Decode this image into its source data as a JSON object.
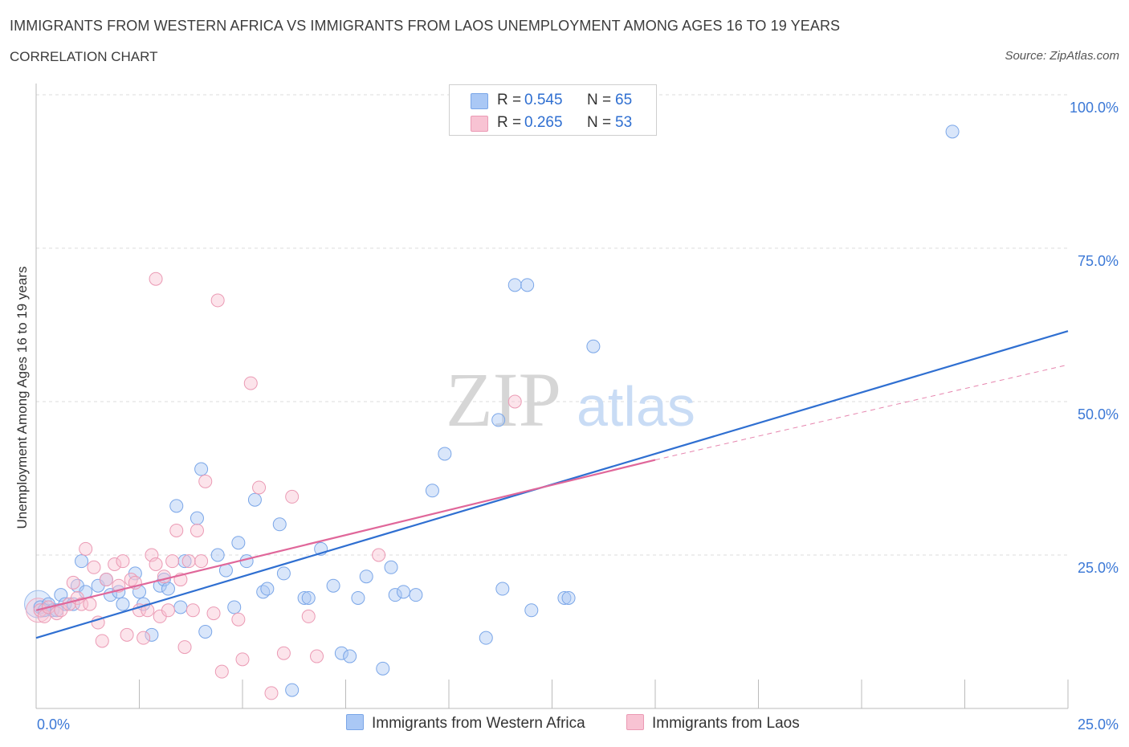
{
  "title": "IMMIGRANTS FROM WESTERN AFRICA VS IMMIGRANTS FROM LAOS UNEMPLOYMENT AMONG AGES 16 TO 19 YEARS",
  "subtitle": "CORRELATION CHART",
  "source": "Source: ZipAtlas.com",
  "watermark": {
    "zip": "ZIP",
    "atlas": "atlas"
  },
  "legend": {
    "r_label": "R =",
    "n_label": "N =",
    "rows": [
      {
        "r": "0.545",
        "n": "65",
        "color": "#aac8f5",
        "border": "#7aa6e8"
      },
      {
        "r": "0.265",
        "n": "53",
        "color": "#f8c3d3",
        "border": "#eb9ab4"
      }
    ]
  },
  "bottom_legend": [
    {
      "label": "Immigrants from Western Africa",
      "color": "#aac8f5",
      "border": "#7aa6e8"
    },
    {
      "label": "Immigrants from Laos",
      "color": "#f8c3d3",
      "border": "#eb9ab4"
    }
  ],
  "chart_data": {
    "type": "scatter",
    "ylabel": "Unemployment Among Ages 16 to 19 years",
    "xlim": [
      0,
      25
    ],
    "ylim": [
      0,
      100
    ],
    "x_tick_labels": [
      "0.0%",
      "25.0%"
    ],
    "y_tick_labels": [
      "25.0%",
      "50.0%",
      "75.0%",
      "100.0%"
    ],
    "y_ticks": [
      25,
      50,
      75,
      100
    ],
    "grid": true,
    "series": [
      {
        "name": "Immigrants from Western Africa",
        "color": "#7aa6e8",
        "fill": "rgba(170,200,245,0.45)",
        "line_color": "#2f6fd1",
        "trend": {
          "x0": 0,
          "y0": 11.5,
          "x1": 25,
          "y1": 61.5
        },
        "points": [
          [
            0.1,
            16.5
          ],
          [
            0.3,
            17
          ],
          [
            0.4,
            16
          ],
          [
            0.6,
            18.5
          ],
          [
            0.7,
            17
          ],
          [
            0.9,
            17
          ],
          [
            1.0,
            20
          ],
          [
            1.1,
            24
          ],
          [
            1.2,
            19
          ],
          [
            1.5,
            20
          ],
          [
            1.7,
            21
          ],
          [
            1.8,
            18.5
          ],
          [
            2.0,
            19
          ],
          [
            2.1,
            17
          ],
          [
            2.4,
            22
          ],
          [
            2.5,
            19
          ],
          [
            2.6,
            17
          ],
          [
            2.8,
            12
          ],
          [
            3.0,
            20
          ],
          [
            3.1,
            21
          ],
          [
            3.2,
            19.5
          ],
          [
            3.4,
            33
          ],
          [
            3.5,
            16.5
          ],
          [
            3.6,
            24
          ],
          [
            3.9,
            31
          ],
          [
            4.0,
            39
          ],
          [
            4.1,
            12.5
          ],
          [
            4.4,
            25
          ],
          [
            4.6,
            22.5
          ],
          [
            4.8,
            16.5
          ],
          [
            4.9,
            27
          ],
          [
            5.1,
            24
          ],
          [
            5.3,
            34
          ],
          [
            5.5,
            19
          ],
          [
            5.6,
            19.5
          ],
          [
            5.9,
            30
          ],
          [
            6.0,
            22
          ],
          [
            6.2,
            3
          ],
          [
            6.5,
            18
          ],
          [
            6.6,
            18
          ],
          [
            6.9,
            26
          ],
          [
            7.2,
            20
          ],
          [
            7.4,
            9
          ],
          [
            7.6,
            8.5
          ],
          [
            7.8,
            18
          ],
          [
            8.0,
            21.5
          ],
          [
            8.4,
            6.5
          ],
          [
            8.6,
            23
          ],
          [
            8.7,
            18.5
          ],
          [
            8.9,
            19
          ],
          [
            9.2,
            18.5
          ],
          [
            9.6,
            35.5
          ],
          [
            9.9,
            41.5
          ],
          [
            10.9,
            11.5
          ],
          [
            11.2,
            47
          ],
          [
            11.3,
            19.5
          ],
          [
            11.6,
            69
          ],
          [
            11.9,
            69
          ],
          [
            12.0,
            16
          ],
          [
            12.8,
            18
          ],
          [
            12.9,
            18
          ],
          [
            13.5,
            59
          ],
          [
            22.2,
            94
          ],
          [
            0.2,
            16
          ],
          [
            0.5,
            16
          ]
        ]
      },
      {
        "name": "Immigrants from Laos",
        "color": "#eb9ab4",
        "fill": "rgba(248,195,211,0.45)",
        "line_color": "#e0679a",
        "trend": {
          "x0": 0,
          "y0": 16,
          "x1": 15,
          "y1": 40.5
        },
        "trend_dashed": {
          "x0": 15,
          "y0": 40.5,
          "x1": 25,
          "y1": 56
        },
        "points": [
          [
            0.1,
            16
          ],
          [
            0.2,
            15
          ],
          [
            0.3,
            16.5
          ],
          [
            0.5,
            15.5
          ],
          [
            0.6,
            16
          ],
          [
            0.8,
            17
          ],
          [
            0.9,
            20.5
          ],
          [
            1.0,
            18
          ],
          [
            1.1,
            17
          ],
          [
            1.2,
            26
          ],
          [
            1.3,
            17
          ],
          [
            1.4,
            23
          ],
          [
            1.5,
            14
          ],
          [
            1.6,
            11
          ],
          [
            1.7,
            21
          ],
          [
            1.9,
            23.5
          ],
          [
            2.0,
            20
          ],
          [
            2.1,
            24
          ],
          [
            2.2,
            12
          ],
          [
            2.3,
            21
          ],
          [
            2.4,
            20.5
          ],
          [
            2.5,
            16
          ],
          [
            2.6,
            11.5
          ],
          [
            2.7,
            16
          ],
          [
            2.8,
            25
          ],
          [
            2.9,
            23.5
          ],
          [
            3.0,
            15
          ],
          [
            3.1,
            21.5
          ],
          [
            3.2,
            16
          ],
          [
            3.3,
            24
          ],
          [
            3.4,
            29
          ],
          [
            3.5,
            21
          ],
          [
            3.6,
            10
          ],
          [
            3.7,
            24
          ],
          [
            3.8,
            16
          ],
          [
            3.9,
            29
          ],
          [
            4.0,
            24
          ],
          [
            4.1,
            37
          ],
          [
            4.3,
            15.5
          ],
          [
            4.5,
            6
          ],
          [
            4.9,
            14.5
          ],
          [
            5.0,
            8
          ],
          [
            5.2,
            53
          ],
          [
            5.4,
            36
          ],
          [
            5.7,
            2.5
          ],
          [
            6.0,
            9
          ],
          [
            6.2,
            34.5
          ],
          [
            6.6,
            15
          ],
          [
            6.8,
            8.5
          ],
          [
            8.3,
            25
          ],
          [
            11.6,
            50
          ],
          [
            2.9,
            70
          ],
          [
            4.4,
            66.5
          ]
        ]
      }
    ]
  }
}
